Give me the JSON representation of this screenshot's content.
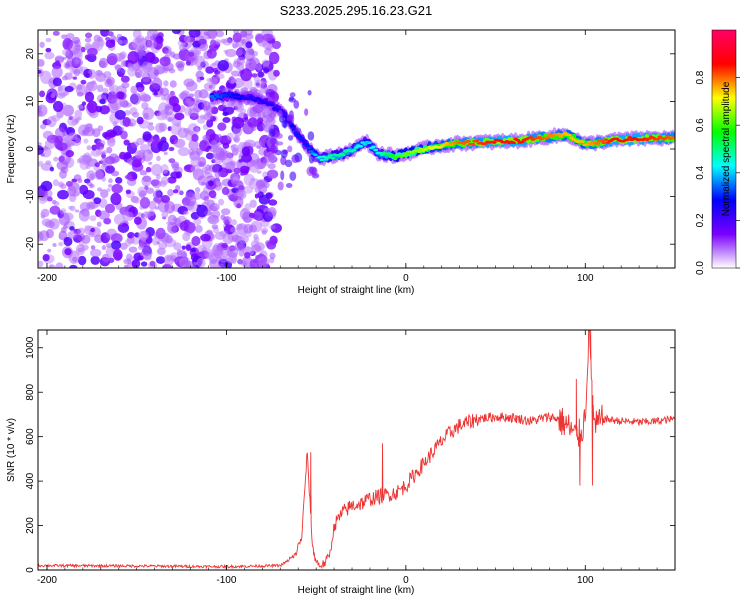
{
  "title": "S233.2025.295.16.23.G21",
  "chart_data": [
    {
      "type": "heatmap",
      "name": "spectrogram",
      "xlabel": "Height of straight line (km)",
      "ylabel": "Frequency (Hz)",
      "xlim": [
        -205,
        150
      ],
      "ylim": [
        -25,
        25
      ],
      "xticks": [
        -200,
        -100,
        0,
        100
      ],
      "yticks": [
        -20,
        -10,
        0,
        10,
        20
      ],
      "colorbar": {
        "label": "Normalized spectral amplitude",
        "range": [
          0,
          1
        ],
        "ticks": [
          "0.0",
          "0.2",
          "0.4",
          "0.6",
          "0.8"
        ],
        "colors": [
          "#ffffff",
          "#7a00ff",
          "#0000ff",
          "#00ffff",
          "#00ff00",
          "#ffff00",
          "#ff0000",
          "#ff0066"
        ]
      },
      "noise_region_x": [
        -205,
        -72
      ],
      "ridge": [
        {
          "x": -108,
          "y": 11,
          "a": 0.35
        },
        {
          "x": -98,
          "y": 11.2,
          "a": 0.3
        },
        {
          "x": -88,
          "y": 10.8,
          "a": 0.25
        },
        {
          "x": -78,
          "y": 10,
          "a": 0.25
        },
        {
          "x": -68,
          "y": 7.5,
          "a": 0.25
        },
        {
          "x": -62,
          "y": 4,
          "a": 0.3
        },
        {
          "x": -55,
          "y": 0.5,
          "a": 0.3
        },
        {
          "x": -48,
          "y": -2,
          "a": 0.45
        },
        {
          "x": -40,
          "y": -1.5,
          "a": 0.5
        },
        {
          "x": -32,
          "y": -0.5,
          "a": 0.5
        },
        {
          "x": -22,
          "y": 1.5,
          "a": 0.4
        },
        {
          "x": -15,
          "y": -1,
          "a": 0.45
        },
        {
          "x": -5,
          "y": -1.5,
          "a": 0.6
        },
        {
          "x": 5,
          "y": -0.5,
          "a": 0.65
        },
        {
          "x": 15,
          "y": 0.5,
          "a": 0.7
        },
        {
          "x": 30,
          "y": 1.2,
          "a": 0.8
        },
        {
          "x": 50,
          "y": 1.5,
          "a": 0.85
        },
        {
          "x": 65,
          "y": 1.8,
          "a": 0.85
        },
        {
          "x": 78,
          "y": 2.5,
          "a": 0.8
        },
        {
          "x": 90,
          "y": 3,
          "a": 0.75
        },
        {
          "x": 100,
          "y": 1,
          "a": 0.75
        },
        {
          "x": 115,
          "y": 1.8,
          "a": 0.85
        },
        {
          "x": 130,
          "y": 2.2,
          "a": 0.85
        },
        {
          "x": 150,
          "y": 2.3,
          "a": 0.8
        }
      ]
    },
    {
      "type": "line",
      "name": "snr",
      "xlabel": "Height of straight line (km)",
      "ylabel": "SNR (10 * v/v)",
      "xlim": [
        -205,
        150
      ],
      "ylim": [
        0,
        1080
      ],
      "xticks": [
        -200,
        -100,
        0,
        100
      ],
      "yticks": [
        0,
        200,
        400,
        600,
        800,
        1000
      ],
      "color": "#ee3333",
      "series": [
        {
          "name": "SNR",
          "x": [
            -205,
            -150,
            -100,
            -70,
            -62,
            -58,
            -55,
            -52,
            -50,
            -48,
            -45,
            -42,
            -40,
            -35,
            -30,
            -25,
            -20,
            -15,
            -10,
            -5,
            0,
            5,
            10,
            15,
            20,
            25,
            30,
            40,
            50,
            60,
            70,
            80,
            85,
            90,
            95,
            98,
            100,
            102,
            105,
            110,
            120,
            130,
            140,
            150
          ],
          "y": [
            20,
            18,
            15,
            20,
            60,
            150,
            530,
            100,
            40,
            20,
            30,
            80,
            200,
            260,
            290,
            300,
            320,
            330,
            340,
            350,
            380,
            430,
            480,
            530,
            580,
            620,
            650,
            680,
            690,
            685,
            670,
            690,
            680,
            650,
            600,
            620,
            700,
            1080,
            640,
            680,
            670,
            665,
            670,
            680
          ]
        }
      ],
      "spikes": [
        {
          "x": -53,
          "y": 530
        },
        {
          "x": -13,
          "y": 570
        },
        {
          "x": 95,
          "y": 860
        },
        {
          "x": 103,
          "y": 1080
        },
        {
          "x": 97,
          "y": 380
        },
        {
          "x": 104,
          "y": 380
        }
      ]
    }
  ]
}
